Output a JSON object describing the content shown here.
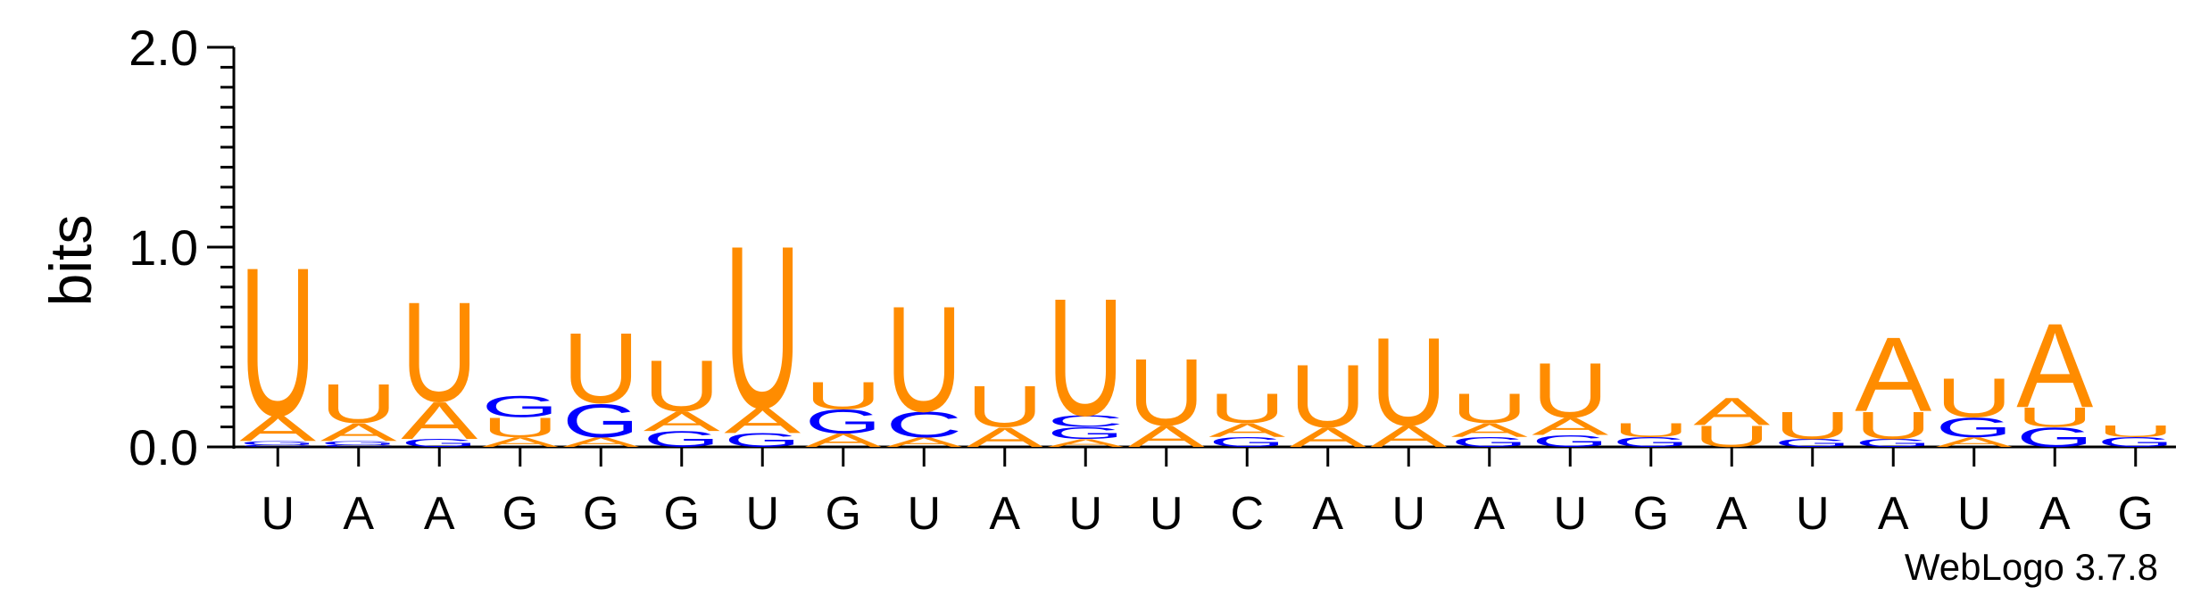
{
  "chart_data": {
    "type": "sequence-logo",
    "ylabel": "bits",
    "ylim": [
      0,
      2
    ],
    "y_ticks": [
      "0.0",
      "1.0",
      "2.0"
    ],
    "positions": [
      "U",
      "A",
      "A",
      "G",
      "G",
      "G",
      "U",
      "G",
      "U",
      "A",
      "U",
      "U",
      "C",
      "A",
      "U",
      "A",
      "U",
      "G",
      "A",
      "U",
      "A",
      "U",
      "A",
      "G"
    ],
    "colors": {
      "A": "#FF8C00",
      "U": "#FF8C00",
      "G": "#0000FF",
      "C": "#0000FF"
    },
    "stacks": [
      [
        [
          "C",
          0.01
        ],
        [
          "G",
          0.02
        ],
        [
          "A",
          0.13
        ],
        [
          "U",
          0.76
        ]
      ],
      [
        [
          "C",
          0.01
        ],
        [
          "G",
          0.02
        ],
        [
          "A",
          0.09
        ],
        [
          "U",
          0.2
        ]
      ],
      [
        [
          "G",
          0.04
        ],
        [
          "A",
          0.19
        ],
        [
          "U",
          0.51
        ]
      ],
      [
        [
          "A",
          0.05
        ],
        [
          "U",
          0.1
        ],
        [
          "G",
          0.11
        ]
      ],
      [
        [
          "A",
          0.05
        ],
        [
          "G",
          0.17
        ],
        [
          "U",
          0.36
        ]
      ],
      [
        [
          "G",
          0.08
        ],
        [
          "A",
          0.1
        ],
        [
          "U",
          0.26
        ]
      ],
      [
        [
          "G",
          0.07
        ],
        [
          "A",
          0.13
        ],
        [
          "U",
          0.83
        ]
      ],
      [
        [
          "A",
          0.07
        ],
        [
          "G",
          0.12
        ],
        [
          "U",
          0.14
        ]
      ],
      [
        [
          "A",
          0.05
        ],
        [
          "C",
          0.13
        ],
        [
          "U",
          0.54
        ]
      ],
      [
        [
          "A",
          0.1
        ],
        [
          "U",
          0.21
        ]
      ],
      [
        [
          "A",
          0.04
        ],
        [
          "G",
          0.06
        ],
        [
          "C",
          0.06
        ],
        [
          "U",
          0.6
        ]
      ],
      [
        [
          "A",
          0.11
        ],
        [
          "U",
          0.34
        ]
      ],
      [
        [
          "G",
          0.05
        ],
        [
          "A",
          0.07
        ],
        [
          "U",
          0.15
        ]
      ],
      [
        [
          "A",
          0.1
        ],
        [
          "U",
          0.32
        ]
      ],
      [
        [
          "A",
          0.11
        ],
        [
          "U",
          0.45
        ]
      ],
      [
        [
          "G",
          0.05
        ],
        [
          "A",
          0.07
        ],
        [
          "U",
          0.15
        ]
      ],
      [
        [
          "G",
          0.06
        ],
        [
          "A",
          0.09
        ],
        [
          "U",
          0.28
        ]
      ],
      [
        [
          "G",
          0.05
        ],
        [
          "U",
          0.07
        ]
      ],
      [
        [
          "U",
          0.11
        ],
        [
          "A",
          0.14
        ]
      ],
      [
        [
          "G",
          0.04
        ],
        [
          "U",
          0.14
        ]
      ],
      [
        [
          "G",
          0.04
        ],
        [
          "U",
          0.14
        ],
        [
          "A",
          0.38
        ]
      ],
      [
        [
          "A",
          0.05
        ],
        [
          "G",
          0.1
        ],
        [
          "U",
          0.2
        ]
      ],
      [
        [
          "G",
          0.1
        ],
        [
          "U",
          0.1
        ],
        [
          "A",
          0.43
        ]
      ],
      [
        [
          "G",
          0.05
        ],
        [
          "U",
          0.06
        ]
      ]
    ]
  },
  "footer": {
    "credit": "WebLogo 3.7.8"
  }
}
